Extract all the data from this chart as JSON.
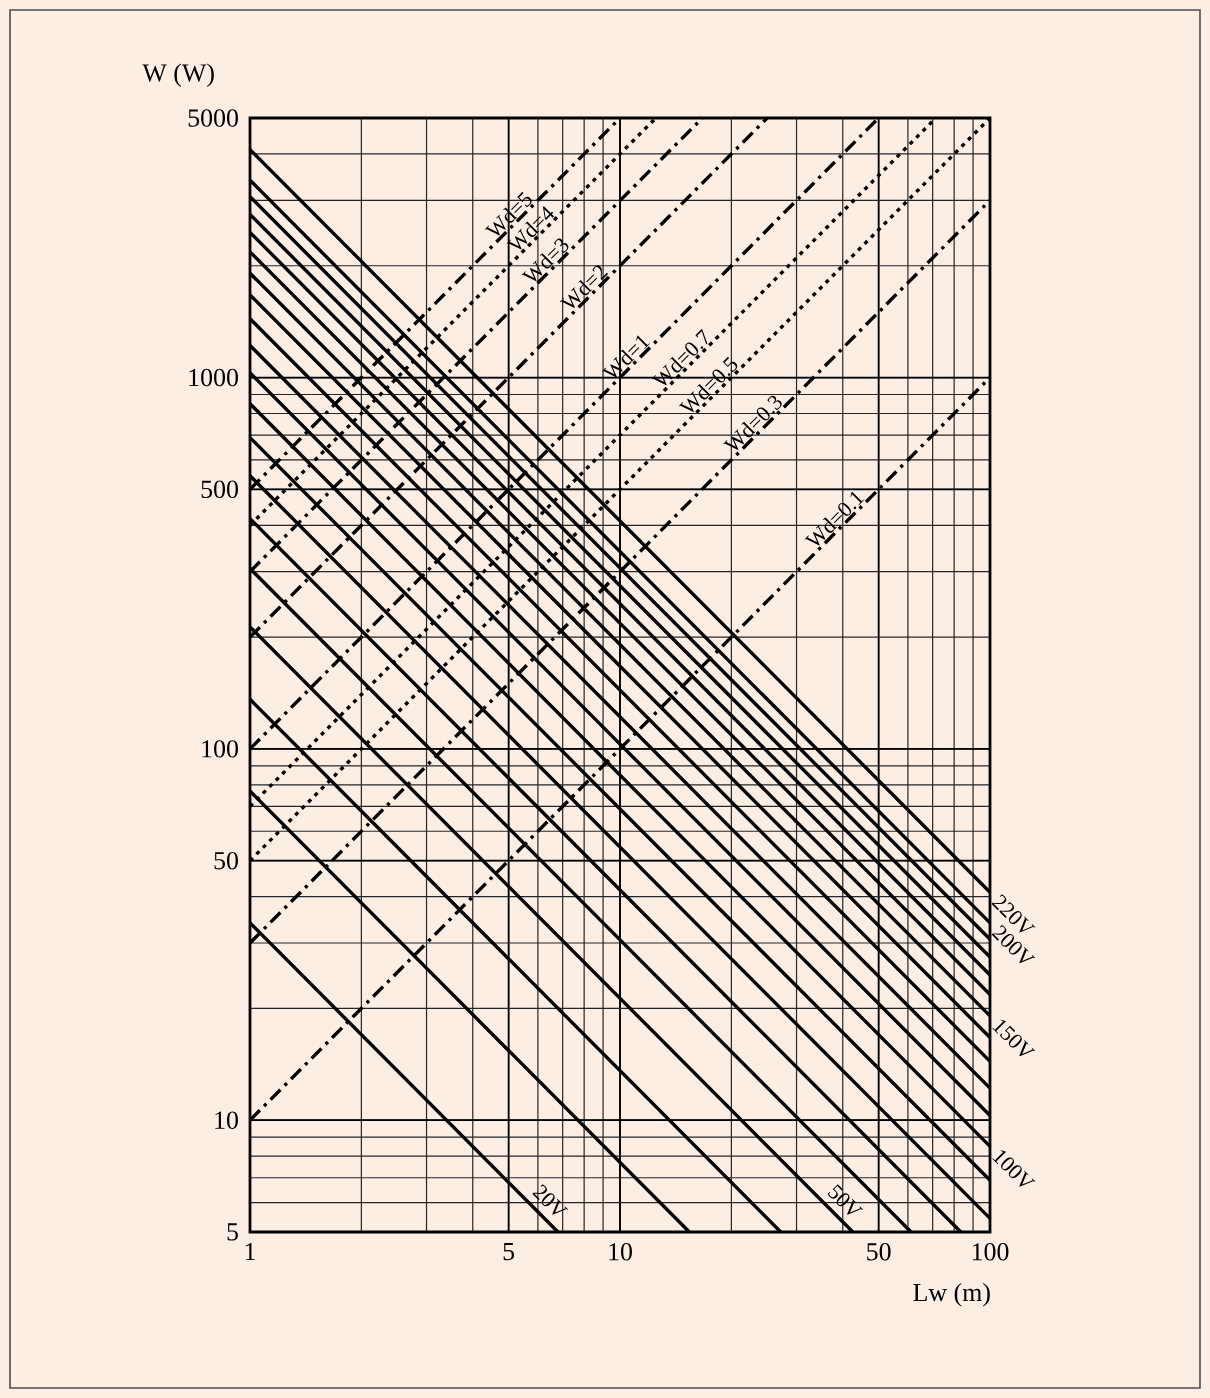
{
  "chart_data": {
    "type": "line",
    "xlabel": "Lw (m)",
    "ylabel": "W (W)",
    "log": "xy",
    "grid": true,
    "xlim": [
      1,
      100
    ],
    "ylim": [
      5,
      5000
    ],
    "xticks": [
      1,
      5,
      10,
      50,
      100
    ],
    "yticks": [
      5,
      10,
      50,
      100,
      500,
      1000,
      5000
    ],
    "series": [
      {
        "name": "20V",
        "color": "#000000",
        "line_style": "solid",
        "x": [
          1,
          6.8
        ],
        "values": [
          34,
          5
        ]
      },
      {
        "color": "#000000",
        "line_style": "solid",
        "x": [
          1,
          15.4
        ],
        "values": [
          77,
          5
        ]
      },
      {
        "color": "#000000",
        "line_style": "solid",
        "x": [
          1,
          27.2
        ],
        "values": [
          136,
          5
        ]
      },
      {
        "name": "50V",
        "color": "#000000",
        "line_style": "solid",
        "x": [
          1,
          42.6
        ],
        "values": [
          213,
          5
        ]
      },
      {
        "color": "#000000",
        "line_style": "solid",
        "x": [
          1,
          61.2
        ],
        "values": [
          306,
          5
        ]
      },
      {
        "color": "#000000",
        "line_style": "solid",
        "x": [
          1,
          83.4
        ],
        "values": [
          417,
          5
        ]
      },
      {
        "color": "#000000",
        "line_style": "solid",
        "x": [
          1,
          100
        ],
        "values": [
          544,
          5.44
        ]
      },
      {
        "color": "#000000",
        "line_style": "solid",
        "x": [
          1,
          100
        ],
        "values": [
          689,
          6.89
        ]
      },
      {
        "name": "100V",
        "color": "#000000",
        "line_style": "solid",
        "x": [
          1,
          100
        ],
        "values": [
          850,
          8.5
        ]
      },
      {
        "color": "#000000",
        "line_style": "solid",
        "x": [
          1,
          100
        ],
        "values": [
          1030,
          10.3
        ]
      },
      {
        "color": "#000000",
        "line_style": "solid",
        "x": [
          1,
          100
        ],
        "values": [
          1220,
          12.2
        ]
      },
      {
        "color": "#000000",
        "line_style": "solid",
        "x": [
          1,
          100
        ],
        "values": [
          1440,
          14.4
        ]
      },
      {
        "color": "#000000",
        "line_style": "solid",
        "x": [
          1,
          100
        ],
        "values": [
          1670,
          16.7
        ]
      },
      {
        "name": "150V",
        "color": "#000000",
        "line_style": "solid",
        "x": [
          1,
          100
        ],
        "values": [
          1910,
          19.1
        ]
      },
      {
        "color": "#000000",
        "line_style": "solid",
        "x": [
          1,
          100
        ],
        "values": [
          2180,
          21.8
        ]
      },
      {
        "color": "#000000",
        "line_style": "solid",
        "x": [
          1,
          100
        ],
        "values": [
          2460,
          24.6
        ]
      },
      {
        "color": "#000000",
        "line_style": "solid",
        "x": [
          1,
          100
        ],
        "values": [
          2750,
          27.5
        ]
      },
      {
        "color": "#000000",
        "line_style": "solid",
        "x": [
          1,
          100
        ],
        "values": [
          3070,
          30.7
        ]
      },
      {
        "name": "200V",
        "color": "#000000",
        "line_style": "solid",
        "x": [
          1,
          100
        ],
        "values": [
          3400,
          34
        ]
      },
      {
        "name": "220V",
        "color": "#000000",
        "line_style": "solid",
        "x": [
          1,
          100
        ],
        "values": [
          4110,
          41.1
        ]
      },
      {
        "name": "Wd=5",
        "color": "#000000",
        "line_style": "dashed",
        "x": [
          1,
          10
        ],
        "values": [
          500,
          5000
        ]
      },
      {
        "name": "Wd=4",
        "color": "#000000",
        "line_style": "dotted",
        "x": [
          1,
          12.5
        ],
        "values": [
          400,
          5000
        ]
      },
      {
        "name": "Wd=3",
        "color": "#000000",
        "line_style": "dashed",
        "x": [
          1,
          16.7
        ],
        "values": [
          300,
          5000
        ]
      },
      {
        "name": "Wd=2",
        "color": "#000000",
        "line_style": "dashed",
        "x": [
          1,
          25
        ],
        "values": [
          200,
          5000
        ]
      },
      {
        "name": "Wd=1",
        "color": "#000000",
        "line_style": "dashed",
        "x": [
          1,
          50
        ],
        "values": [
          100,
          5000
        ]
      },
      {
        "name": "Wd=0.7",
        "color": "#000000",
        "line_style": "dotted",
        "x": [
          1,
          71.4
        ],
        "values": [
          70,
          5000
        ]
      },
      {
        "name": "Wd=0.5",
        "color": "#000000",
        "line_style": "dotted",
        "x": [
          1,
          100
        ],
        "values": [
          50,
          5000
        ]
      },
      {
        "name": "Wd=0.3",
        "color": "#000000",
        "line_style": "dashed",
        "x": [
          1,
          100
        ],
        "values": [
          30,
          3000
        ]
      },
      {
        "name": "Wd=0.1",
        "color": "#000000",
        "line_style": "dashed",
        "x": [
          1,
          100
        ],
        "values": [
          10,
          1000
        ]
      }
    ]
  }
}
